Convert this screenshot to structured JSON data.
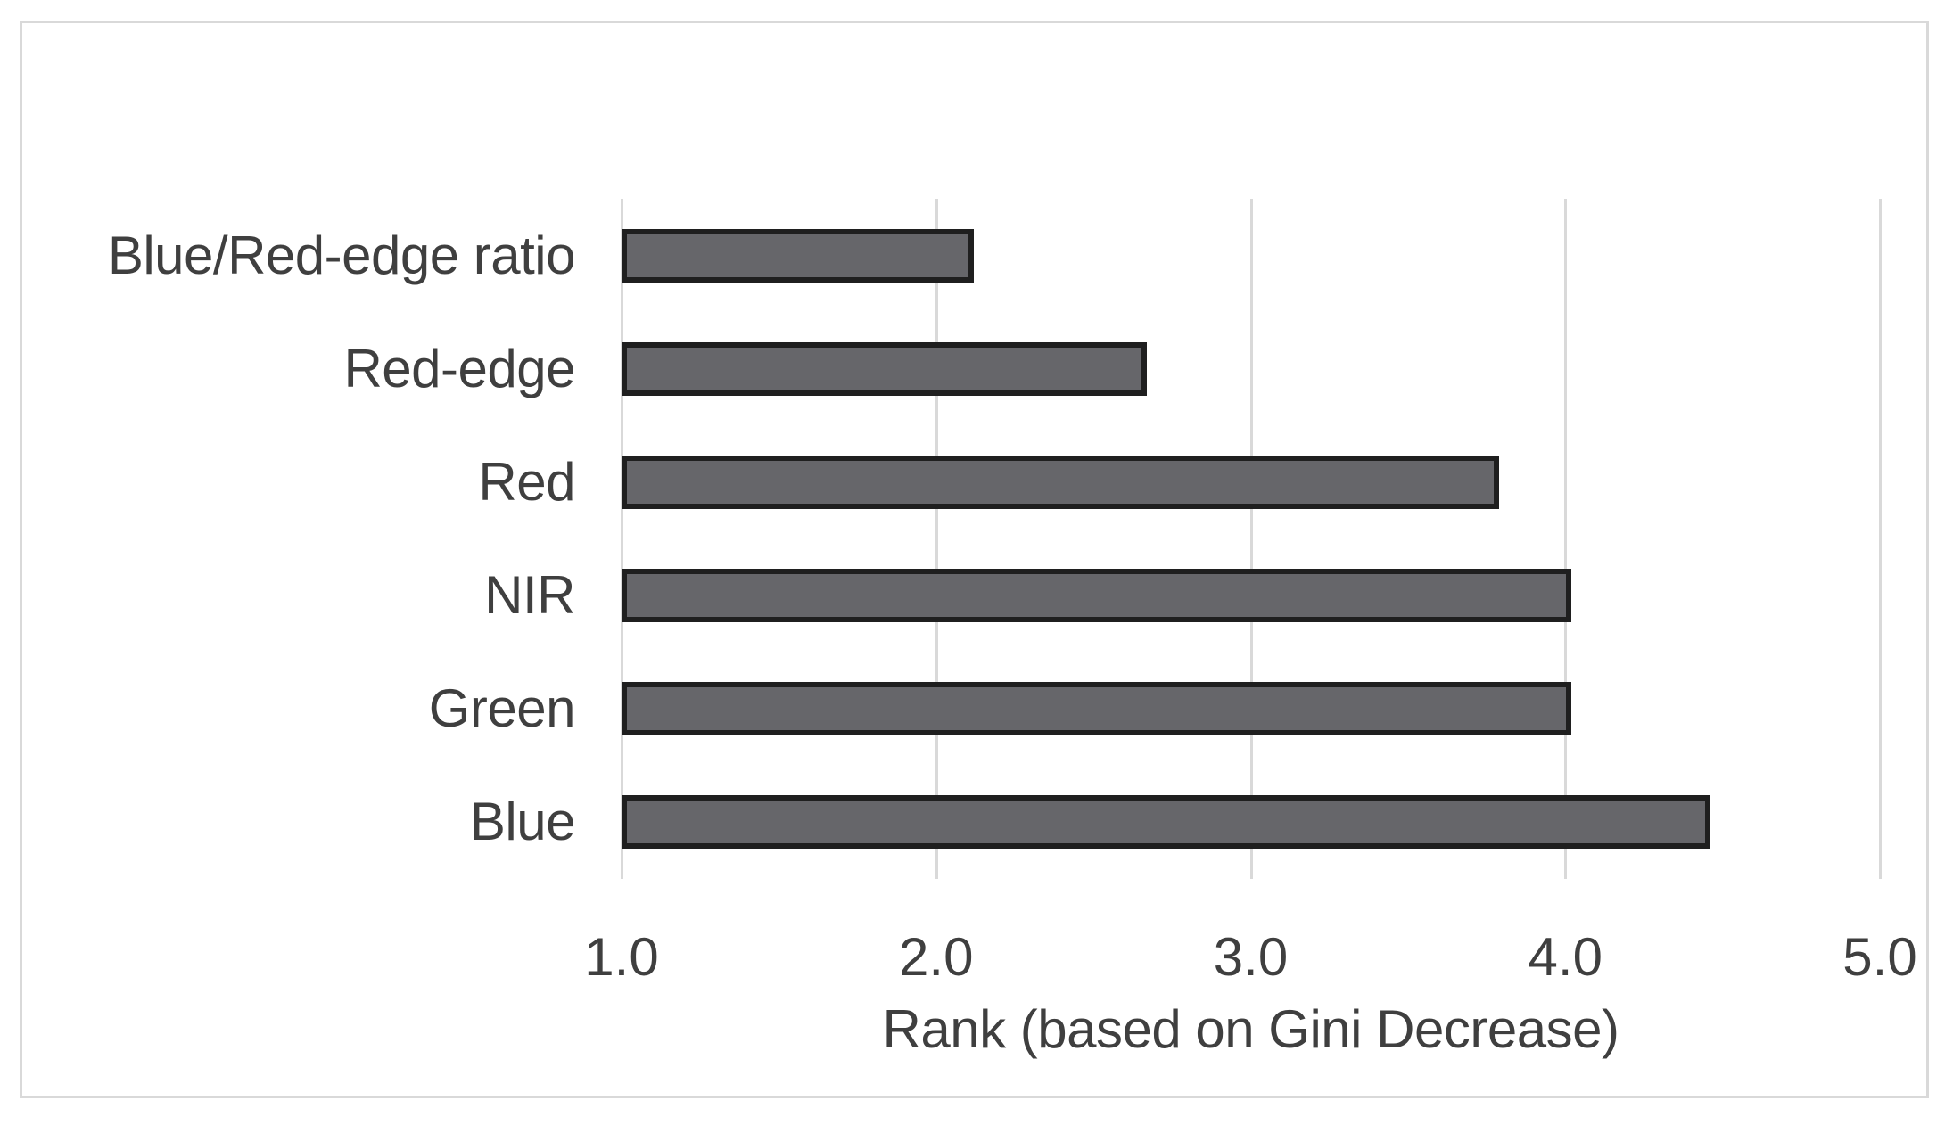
{
  "chart_data": {
    "type": "bar",
    "orientation": "horizontal",
    "title": "",
    "xlabel": "Rank (based on Gini Decrease)",
    "ylabel": "",
    "categories": [
      "Blue/Red-edge ratio",
      "Red-edge",
      "Red",
      "NIR",
      "Green",
      "Blue"
    ],
    "values": [
      2.12,
      2.67,
      3.79,
      4.02,
      4.02,
      4.46
    ],
    "xlim": [
      1.0,
      5.0
    ],
    "xticks": [
      1.0,
      2.0,
      3.0,
      4.0,
      5.0
    ],
    "xtick_labels": [
      "1.0",
      "2.0",
      "3.0",
      "4.0",
      "5.0"
    ],
    "grid": "vertical",
    "legend": "none",
    "colors": {
      "bar_fill": "#66666a",
      "bar_border": "#1f1f1f",
      "gridline": "#d9d9d9",
      "text": "#3f3f3f",
      "frame_border": "#d9d9d9",
      "background": "#ffffff"
    }
  }
}
